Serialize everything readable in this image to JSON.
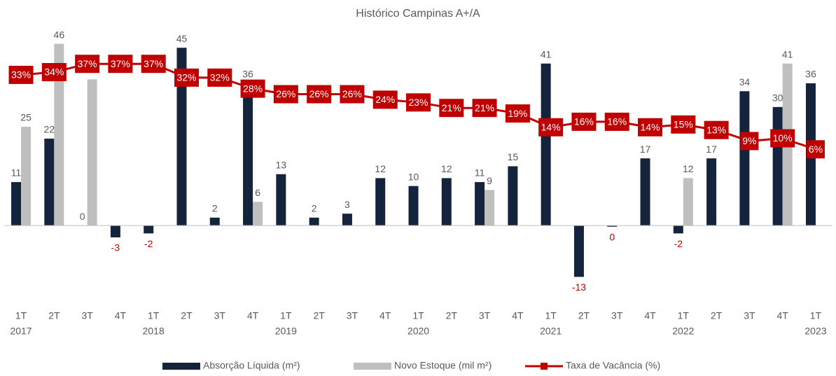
{
  "chart_data": {
    "type": "combo",
    "title": "Histórico Campinas A+/A",
    "categories": [
      "1T",
      "2T",
      "3T",
      "4T",
      "1T",
      "2T",
      "3T",
      "4T",
      "1T",
      "2T",
      "3T",
      "4T",
      "1T",
      "2T",
      "3T",
      "4T",
      "1T",
      "2T",
      "3T",
      "4T",
      "1T",
      "2T",
      "3T",
      "4T",
      "1T"
    ],
    "year_labels": [
      "2017",
      null,
      null,
      null,
      "2018",
      null,
      null,
      null,
      "2019",
      null,
      null,
      null,
      "2020",
      null,
      null,
      null,
      "2021",
      null,
      null,
      null,
      "2022",
      null,
      null,
      null,
      "2023"
    ],
    "ylim": [
      -17,
      50
    ],
    "y2lim": [
      -46,
      50
    ],
    "series": [
      {
        "name": "Absorção Líquida (m²)",
        "color": "#14243c",
        "type": "bar",
        "values": [
          11,
          22,
          0,
          -3,
          -2,
          45,
          2,
          36,
          13,
          2,
          3,
          12,
          10,
          12,
          11,
          15,
          41,
          -13,
          -0.3,
          17,
          -2,
          17,
          34,
          30,
          36
        ],
        "value_labels": [
          "11",
          "22",
          "0",
          "-3",
          "-2",
          "45",
          "2",
          "36",
          "13",
          "2",
          "3",
          "12",
          "10",
          "12",
          "11",
          "15",
          "41",
          "-13",
          "0",
          "17",
          "-2",
          "17",
          "34",
          "30",
          "36"
        ]
      },
      {
        "name": "Novo Estoque (mil m²)",
        "color": "#bfbfbf",
        "type": "bar",
        "values": [
          25,
          46,
          37,
          0,
          0,
          0,
          0,
          6,
          0,
          0,
          0,
          0,
          0,
          0,
          9,
          0,
          0,
          0,
          0,
          0,
          12,
          0,
          0,
          41,
          0
        ],
        "value_labels": [
          "25",
          "46",
          null,
          null,
          null,
          null,
          null,
          "6",
          null,
          null,
          null,
          null,
          null,
          null,
          "9",
          null,
          null,
          null,
          null,
          null,
          "12",
          null,
          null,
          "41",
          null
        ]
      },
      {
        "name": "Taxa de Vacância (%)",
        "color": "#c00000",
        "type": "line",
        "axis": "y2",
        "values": [
          33,
          34,
          37,
          37,
          37,
          32,
          32,
          28,
          26,
          26,
          26,
          24,
          23,
          21,
          21,
          19,
          14,
          16,
          16,
          14,
          15,
          13,
          9,
          10,
          6
        ],
        "value_labels": [
          "33%",
          "34%",
          "37%",
          "37%",
          "37%",
          "32%",
          "32%",
          "28%",
          "26%",
          "26%",
          "26%",
          "24%",
          "23%",
          "21%",
          "21%",
          "19%",
          "14%",
          "16%",
          "16%",
          "14%",
          "15%",
          "13%",
          "9%",
          "10%",
          "6%"
        ]
      }
    ],
    "negative_label_color": "#c00000"
  }
}
